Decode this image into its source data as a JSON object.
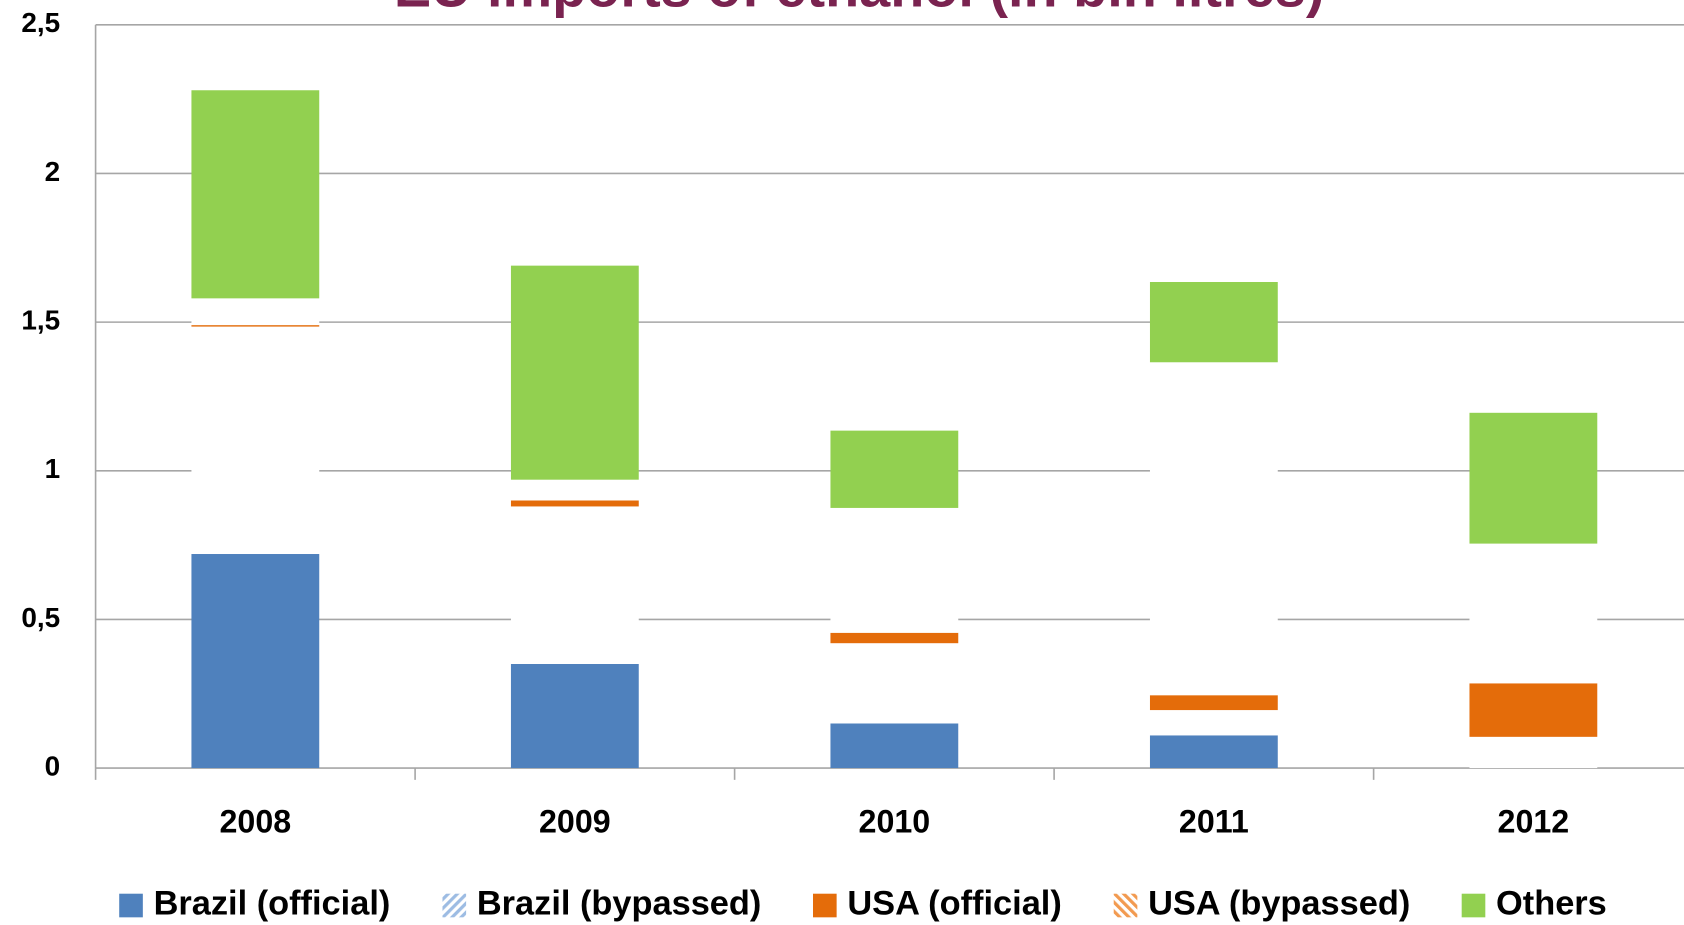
{
  "chart_data": {
    "type": "stacked_bar",
    "title": "EU imports of ethanol (in bln litres)",
    "categories": [
      "2008",
      "2009",
      "2010",
      "2011",
      "2012"
    ],
    "series": [
      {
        "name": "Brazil (official)",
        "color": "#4f81bd",
        "hatch": false,
        "values": [
          0.72,
          0.35,
          0.15,
          0.11,
          0
        ]
      },
      {
        "name": "Brazil (bypassed)",
        "color": "#9dbce3",
        "hatch": true,
        "values": [
          0.765,
          0.53,
          0.27,
          0.085,
          0.105
        ]
      },
      {
        "name": "USA (official)",
        "color": "#e46c0a",
        "hatch": false,
        "values": [
          0.005,
          0.02,
          0.035,
          0.05,
          0.18
        ]
      },
      {
        "name": "USA (bypassed)",
        "color": "#f29a50",
        "hatch": true,
        "values": [
          0.09,
          0.07,
          0.42,
          1.12,
          0.47
        ]
      },
      {
        "name": "Others",
        "color": "#92d050",
        "hatch": false,
        "values": [
          0.7,
          0.72,
          0.26,
          0.27,
          0.44
        ]
      }
    ],
    "ylim": [
      0,
      2.5
    ],
    "yticks": [
      0,
      {
        "value": 0.5,
        "label": "0,5"
      },
      1,
      {
        "value": 1.5,
        "label": "1,5"
      },
      2,
      {
        "value": 2.5,
        "label": "2,5"
      }
    ],
    "grid": true,
    "legend": "bottom"
  }
}
